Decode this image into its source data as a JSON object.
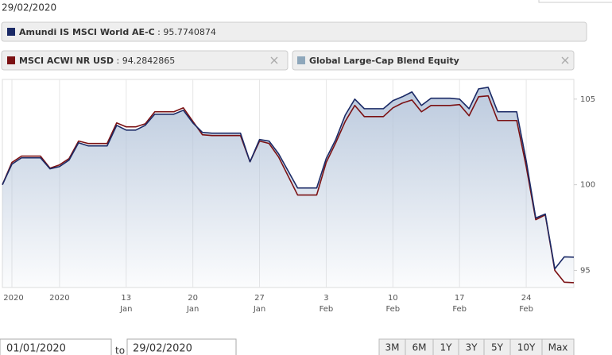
{
  "date_label": "29/02/2020",
  "chart_data": {
    "type": "line",
    "legend_separator": " : ",
    "series": [
      {
        "name": "Amundi IS MSCI World AE-C",
        "color": "#1b2a66",
        "legend_value": 95.7740874,
        "values": [
          100.0,
          101.2,
          101.57,
          101.57,
          100.93,
          101.06,
          101.44,
          102.45,
          102.27,
          102.27,
          103.47,
          103.19,
          103.19,
          103.47,
          104.12,
          104.12,
          104.35,
          103.61,
          103.06,
          103.01,
          103.01,
          101.34,
          102.64,
          102.55,
          101.81,
          99.81,
          99.81,
          101.53,
          102.64,
          104.07,
          105.0,
          104.44,
          104.44,
          104.91,
          105.14,
          105.42,
          104.63,
          105.05,
          105.05,
          105.0,
          104.44,
          105.6,
          105.69,
          104.26,
          104.26,
          101.39,
          98.06,
          98.29,
          95.09,
          95.79,
          95.77
        ]
      },
      {
        "name": "MSCI ACWI NR USD",
        "color": "#7b1113",
        "legend_value": 94.2842865,
        "values": [
          100.0,
          101.3,
          101.67,
          101.67,
          100.97,
          101.16,
          101.53,
          102.55,
          102.41,
          102.41,
          103.61,
          103.38,
          103.38,
          103.56,
          104.26,
          104.26,
          104.49,
          103.7,
          102.92,
          102.87,
          102.87,
          101.34,
          102.55,
          102.41,
          101.62,
          99.4,
          99.4,
          101.3,
          102.45,
          103.7,
          104.63,
          103.98,
          103.98,
          104.49,
          104.77,
          104.95,
          104.26,
          104.63,
          104.63,
          104.68,
          104.03,
          105.14,
          105.19,
          103.75,
          103.75,
          101.06,
          97.96,
          98.24,
          95.0,
          94.31,
          94.28
        ]
      }
    ],
    "inactive_series": [
      {
        "name": "Global Large-Cap Blend Equity",
        "color": "#8ea7bb"
      }
    ],
    "x": [
      "2019-12-31",
      "2020-01-01",
      "2020-01-02",
      "2020-01-04",
      "2020-01-05",
      "2020-01-06",
      "2020-01-07",
      "2020-01-08",
      "2020-01-09",
      "2020-01-11",
      "2020-01-12",
      "2020-01-13",
      "2020-01-14",
      "2020-01-15",
      "2020-01-16",
      "2020-01-18",
      "2020-01-19",
      "2020-01-20",
      "2020-01-21",
      "2020-01-22",
      "2020-01-25",
      "2020-01-26",
      "2020-01-27",
      "2020-01-28",
      "2020-01-29",
      "2020-01-31",
      "2020-02-02",
      "2020-02-03",
      "2020-02-04",
      "2020-02-05",
      "2020-02-06",
      "2020-02-07",
      "2020-02-09",
      "2020-02-10",
      "2020-02-11",
      "2020-02-12",
      "2020-02-13",
      "2020-02-14",
      "2020-02-16",
      "2020-02-17",
      "2020-02-18",
      "2020-02-19",
      "2020-02-20",
      "2020-02-21",
      "2020-02-23",
      "2020-02-24",
      "2020-02-25",
      "2020-02-26",
      "2020-02-27",
      "2020-02-28",
      "2020-02-29"
    ],
    "xlim": [
      "2019-12-31",
      "2020-02-29"
    ],
    "xticks": [
      {
        "value": "2020-01-01",
        "label": "2020"
      },
      {
        "value": "2020-01-06",
        "label": "2020"
      },
      {
        "value": "2020-01-13",
        "label": "13 Jan"
      },
      {
        "value": "2020-01-20",
        "label": "20 Jan"
      },
      {
        "value": "2020-01-27",
        "label": "27 Jan"
      },
      {
        "value": "2020-02-03",
        "label": "3 Feb"
      },
      {
        "value": "2020-02-10",
        "label": "10 Feb"
      },
      {
        "value": "2020-02-17",
        "label": "17 Feb"
      },
      {
        "value": "2020-02-24",
        "label": "24 Feb"
      }
    ],
    "ylim": [
      94,
      106.15
    ],
    "yticks": [
      95,
      100,
      105
    ],
    "grid": true,
    "area_fill": "#b4c4da"
  },
  "controls": {
    "from": "01/01/2020",
    "to_label": "to",
    "to": "29/02/2020",
    "ranges": [
      "3M",
      "6M",
      "1Y",
      "3Y",
      "5Y",
      "10Y",
      "Max"
    ]
  }
}
